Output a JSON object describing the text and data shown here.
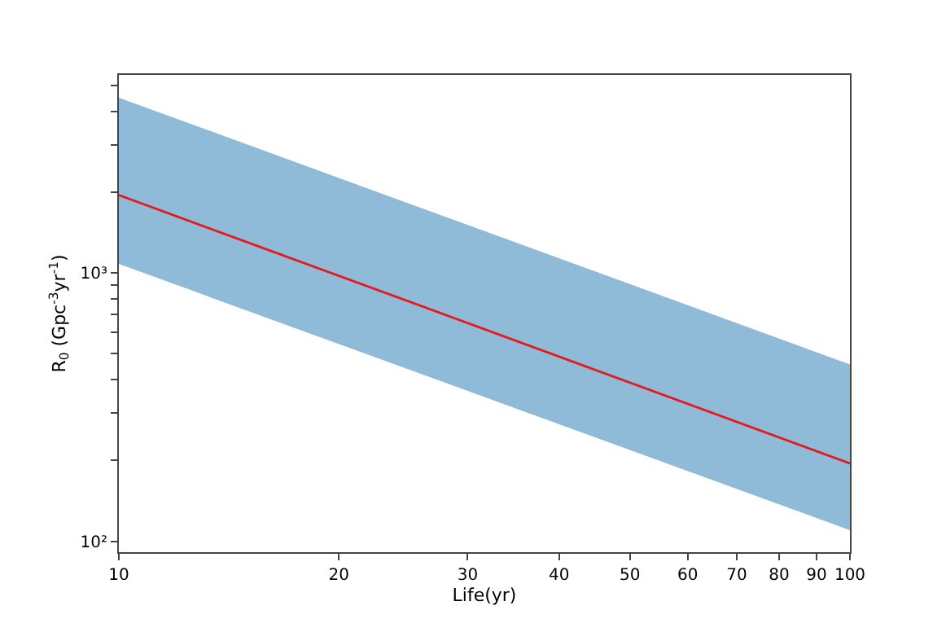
{
  "chart_data": {
    "type": "line",
    "xlabel": "Life(yr)",
    "ylabel": "R$_{0}$ (Gpc$^{-3}$yr$^{-1}$)",
    "log": "xy",
    "marker": "none",
    "line_style": "solid",
    "x": [
      10,
      100
    ],
    "series": [
      {
        "color": "#e41a1c",
        "values": [
          1950,
          195
        ],
        "lower": [
          1080,
          110
        ],
        "upper": [
          4500,
          456
        ]
      }
    ],
    "xlim": [
      10,
      100
    ],
    "xticks": [
      10,
      20,
      30,
      40,
      50,
      60,
      70,
      80,
      90,
      100
    ],
    "ylim": [
      91,
      5470
    ],
    "yticks": [
      {
        "value": 100,
        "label": "10²"
      },
      {
        "value": 200,
        "label": null
      },
      {
        "value": 300,
        "label": null
      },
      {
        "value": 400,
        "label": null
      },
      {
        "value": 500,
        "label": null
      },
      {
        "value": 600,
        "label": null
      },
      {
        "value": 700,
        "label": null
      },
      {
        "value": 800,
        "label": null
      },
      {
        "value": 900,
        "label": null
      },
      {
        "value": 1000,
        "label": "10³"
      },
      {
        "value": 2000,
        "label": null
      },
      {
        "value": 3000,
        "label": null
      },
      {
        "value": 4000,
        "label": null
      },
      {
        "value": 5000,
        "label": null
      }
    ]
  }
}
